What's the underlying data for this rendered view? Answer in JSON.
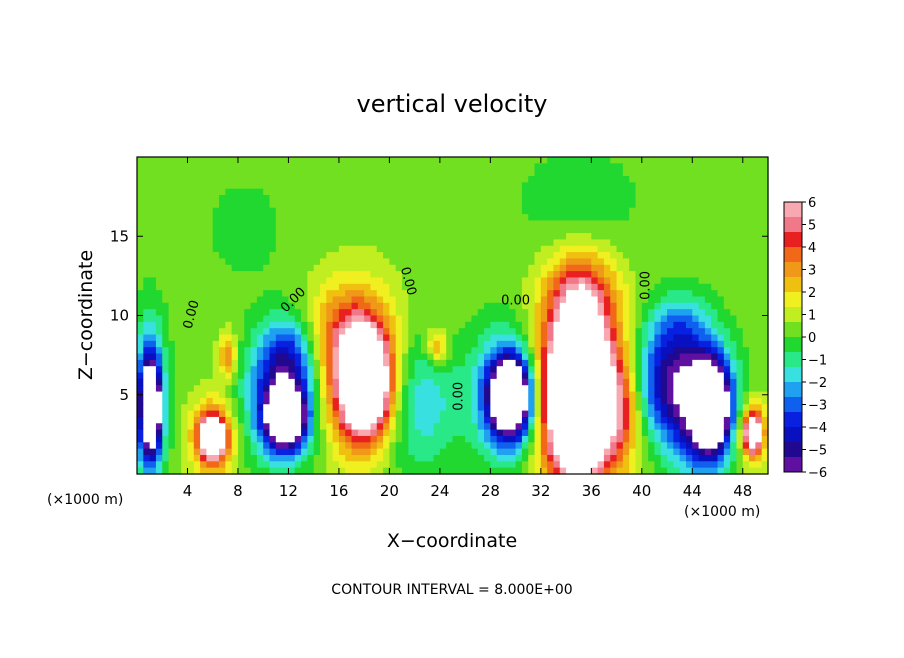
{
  "chart_data": {
    "type": "heatmap",
    "title": "vertical velocity",
    "xlabel": "X−coordinate",
    "ylabel": "Z−coordinate",
    "x_unit_left": "(×1000 m)",
    "x_unit_right": "(×1000 m)",
    "footer": "CONTOUR INTERVAL = 8.000E+00",
    "xlim": [
      0,
      50
    ],
    "ylim": [
      0,
      20
    ],
    "x_ticks": [
      4,
      8,
      12,
      16,
      20,
      24,
      28,
      32,
      36,
      40,
      44,
      48
    ],
    "y_ticks": [
      5,
      10,
      15
    ],
    "contour_labels": [
      {
        "text": "0.00",
        "x": 4.6,
        "y": 10.0,
        "angle": -75
      },
      {
        "text": "0.00",
        "x": 12.6,
        "y": 10.8,
        "angle": -45
      },
      {
        "text": "0.00",
        "x": 21.2,
        "y": 12.1,
        "angle": 75
      },
      {
        "text": "0.00",
        "x": 25.8,
        "y": 4.9,
        "angle": -90
      },
      {
        "text": "0.00",
        "x": 30.0,
        "y": 10.7,
        "angle": 0
      },
      {
        "text": "0.00",
        "x": 40.6,
        "y": 11.9,
        "angle": -90
      }
    ],
    "colorbar": {
      "min": -6,
      "max": 6,
      "tick_labels": [
        "6",
        "5",
        "4",
        "3",
        "2",
        "1",
        "0",
        "−1",
        "−2",
        "−3",
        "−4",
        "−5",
        "−6"
      ],
      "colors": [
        "#f7a8b0",
        "#f07888",
        "#e82020",
        "#f06818",
        "#f09818",
        "#f0c010",
        "#f0f020",
        "#c0ee20",
        "#70e020",
        "#20d830",
        "#28e888",
        "#38e0e0",
        "#20a0f0",
        "#1060f0",
        "#0820e0",
        "#0810c0",
        "#200890",
        "#6010a0"
      ],
      "colors_order": "top_to_bottom"
    },
    "background_value": 0.4,
    "cells": [
      {
        "x": 1.0,
        "y": 4.5,
        "sx": 0.9,
        "sy": 3.5,
        "v": -4.6
      },
      {
        "x": 1.1,
        "y": 4.2,
        "sx": 0.5,
        "sy": 1.8,
        "v": -9.0
      },
      {
        "x": 6.0,
        "y": 2.3,
        "sx": 1.2,
        "sy": 1.6,
        "v": 4.5
      },
      {
        "x": 6.0,
        "y": 2.3,
        "sx": 0.6,
        "sy": 0.8,
        "v": 8.5
      },
      {
        "x": 7.2,
        "y": 7.5,
        "sx": 0.5,
        "sy": 1.0,
        "v": 3.0
      },
      {
        "x": 11.5,
        "y": 4.5,
        "sx": 2.0,
        "sy": 2.6,
        "v": -4.8
      },
      {
        "x": 11.8,
        "y": 3.5,
        "sx": 1.0,
        "sy": 1.2,
        "v": -9.5
      },
      {
        "x": 12.0,
        "y": 7.5,
        "sx": 1.6,
        "sy": 1.8,
        "v": -3.0
      },
      {
        "x": 17.5,
        "y": 6.0,
        "sx": 2.2,
        "sy": 3.4,
        "v": 4.3
      },
      {
        "x": 18.2,
        "y": 5.6,
        "sx": 1.4,
        "sy": 2.2,
        "v": 8.5
      },
      {
        "x": 16.5,
        "y": 9.0,
        "sx": 2.4,
        "sy": 2.2,
        "v": 2.0
      },
      {
        "x": 22.0,
        "y": 4.5,
        "sx": 2.6,
        "sy": 3.0,
        "v": -2.5
      },
      {
        "x": 23.8,
        "y": 8.0,
        "sx": 0.6,
        "sy": 0.8,
        "v": 3.0
      },
      {
        "x": 29.5,
        "y": 5.0,
        "sx": 1.8,
        "sy": 2.8,
        "v": -4.8
      },
      {
        "x": 29.6,
        "y": 4.8,
        "sx": 1.1,
        "sy": 1.6,
        "v": -9.0
      },
      {
        "x": 35.0,
        "y": 5.2,
        "sx": 2.6,
        "sy": 4.4,
        "v": 5.0
      },
      {
        "x": 35.0,
        "y": 5.0,
        "sx": 1.8,
        "sy": 3.4,
        "v": 9.5
      },
      {
        "x": 35.2,
        "y": 11.5,
        "sx": 1.8,
        "sy": 1.8,
        "v": 3.0
      },
      {
        "x": 38.5,
        "y": 4.0,
        "sx": 1.0,
        "sy": 2.2,
        "v": 2.0
      },
      {
        "x": 42.0,
        "y": 6.0,
        "sx": 2.0,
        "sy": 2.5,
        "v": -4.2
      },
      {
        "x": 44.5,
        "y": 4.2,
        "sx": 2.0,
        "sy": 3.0,
        "v": -4.6
      },
      {
        "x": 45.5,
        "y": 4.2,
        "sx": 1.0,
        "sy": 1.9,
        "v": -9.5
      },
      {
        "x": 48.8,
        "y": 2.6,
        "sx": 0.8,
        "sy": 1.4,
        "v": 4.2
      },
      {
        "x": 48.8,
        "y": 2.6,
        "sx": 0.4,
        "sy": 0.7,
        "v": 7.5
      },
      {
        "x": 43.0,
        "y": 9.5,
        "sx": 1.6,
        "sy": 1.4,
        "v": -1.6
      },
      {
        "x": 35.0,
        "y": 17.0,
        "sx": 4.0,
        "sy": 3.0,
        "v": -0.8
      },
      {
        "x": 8.5,
        "y": 15.5,
        "sx": 3.0,
        "sy": 3.0,
        "v": -0.6
      }
    ],
    "legend": "right"
  }
}
